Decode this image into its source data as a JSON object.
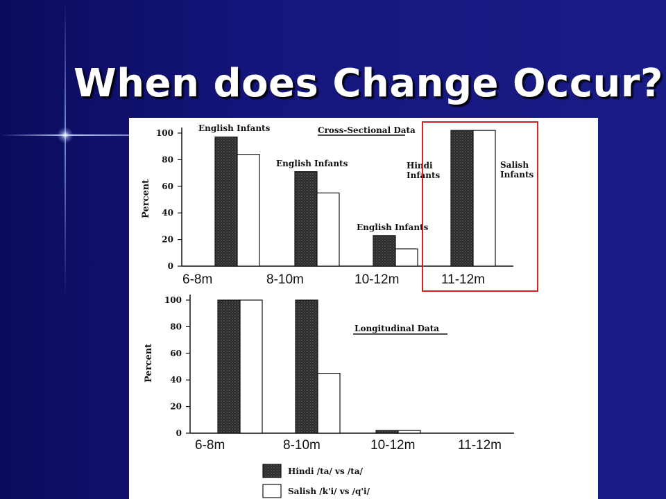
{
  "slide": {
    "title": "When does Change Occur?",
    "colors": {
      "background": "#15167d",
      "title": "#ffffff",
      "highlight_box": "#d62020"
    }
  },
  "chart_data": [
    {
      "type": "bar",
      "title": "Cross-Sectional Data",
      "ylabel": "Percent",
      "ylim": [
        0,
        100
      ],
      "yticks": [
        "0",
        "20",
        "40",
        "60",
        "80",
        "100"
      ],
      "categories": [
        "6-8m",
        "8-10m",
        "10-12m",
        "11-12m"
      ],
      "group_labels": [
        "English Infants",
        "English Infants",
        "English Infants",
        ""
      ],
      "series": [
        {
          "name": "Hindi /ta/ vs /ta/",
          "values": [
            97,
            71,
            23,
            102
          ]
        },
        {
          "name": "Salish /k'i/ vs /q'i/",
          "values": [
            84,
            55,
            13,
            102
          ]
        }
      ],
      "annotations": [
        "Hindi Infants",
        "Salish Infants"
      ],
      "highlight_category": "11-12m"
    },
    {
      "type": "bar",
      "title": "Longitudinal Data",
      "ylabel": "Percent",
      "ylim": [
        0,
        100
      ],
      "yticks": [
        "0",
        "20",
        "40",
        "60",
        "80",
        "100"
      ],
      "categories": [
        "6-8m",
        "8-10m",
        "10-12m",
        "11-12m"
      ],
      "series": [
        {
          "name": "Hindi /ta/ vs /ta/",
          "values": [
            100,
            100,
            2,
            0
          ]
        },
        {
          "name": "Salish /k'i/ vs /q'i/",
          "values": [
            100,
            45,
            2,
            0
          ]
        }
      ],
      "legend": [
        "Hindi /ta/ vs /ta/",
        "Salish /k'i/ vs /q'i/"
      ]
    }
  ]
}
